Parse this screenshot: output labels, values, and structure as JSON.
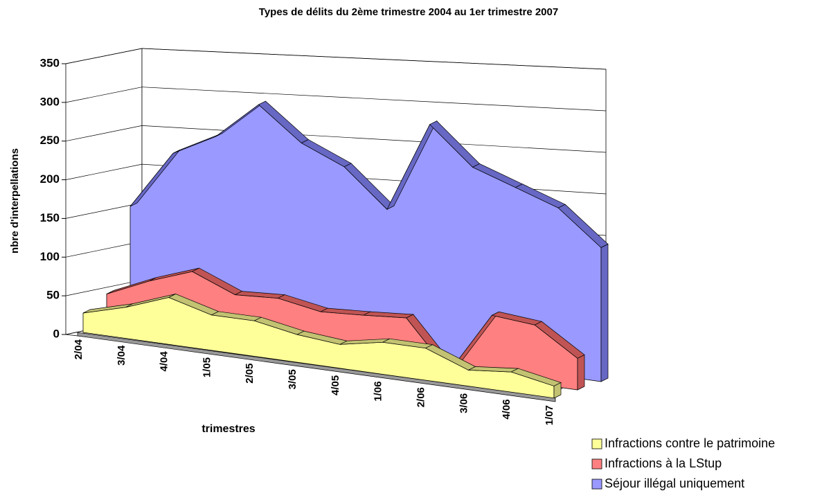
{
  "chart_data": {
    "type": "area3d",
    "title": "Types de délits du 2ème trimestre 2004 au 1er trimestre 2007",
    "x_label": "trimestres",
    "y_label": "nbre d'interpellations",
    "categories": [
      "2/04",
      "3/04",
      "4/04",
      "1/05",
      "2/05",
      "3/05",
      "4/05",
      "1/06",
      "2/06",
      "3/06",
      "4/06",
      "1/07"
    ],
    "series": [
      {
        "name": "Infractions contre le patrimoine",
        "color": "#ffff99",
        "edge_color": "#c2c272",
        "values": [
          25,
          40,
          60,
          45,
          45,
          35,
          30,
          40,
          40,
          20,
          25,
          15
        ]
      },
      {
        "name": "Infractions à la LStup",
        "color": "#ff8080",
        "edge_color": "#c05454",
        "values": [
          40,
          65,
          85,
          62,
          65,
          55,
          58,
          62,
          0,
          80,
          75,
          40
        ]
      },
      {
        "name": "Séjour illégal uniquement",
        "color": "#9999ff",
        "edge_color": "#6767c4",
        "values": [
          150,
          230,
          260,
          310,
          265,
          240,
          190,
          310,
          260,
          240,
          220,
          175
        ]
      }
    ],
    "ylim": [
      0,
      350
    ],
    "yticks": [
      0,
      50,
      100,
      150,
      200,
      250,
      300,
      350
    ],
    "grid": true,
    "legend": "bottom-right"
  }
}
